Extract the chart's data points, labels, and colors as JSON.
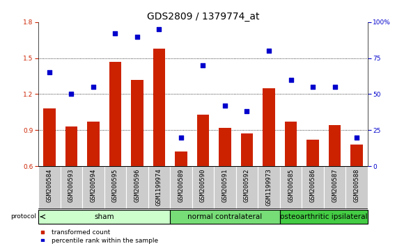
{
  "title": "GDS2809 / 1379774_at",
  "samples": [
    "GSM200584",
    "GSM200593",
    "GSM200594",
    "GSM200595",
    "GSM200596",
    "GSM1199974",
    "GSM200589",
    "GSM200590",
    "GSM200591",
    "GSM200592",
    "GSM1199973",
    "GSM200585",
    "GSM200586",
    "GSM200587",
    "GSM200588"
  ],
  "bar_values": [
    1.08,
    0.93,
    0.97,
    1.47,
    1.32,
    1.58,
    0.72,
    1.03,
    0.92,
    0.87,
    1.25,
    0.97,
    0.82,
    0.94,
    0.78
  ],
  "dot_values": [
    65,
    50,
    55,
    92,
    90,
    95,
    20,
    70,
    42,
    38,
    80,
    60,
    55,
    55,
    20
  ],
  "bar_color": "#cc2200",
  "dot_color": "#0000cc",
  "ylim_left": [
    0.6,
    1.8
  ],
  "ylim_right": [
    0,
    100
  ],
  "yticks_left": [
    0.6,
    0.9,
    1.2,
    1.5,
    1.8
  ],
  "yticks_right": [
    0,
    25,
    50,
    75,
    100
  ],
  "ytick_labels_right": [
    "0",
    "25",
    "50",
    "75",
    "100%"
  ],
  "hgrid_lines": [
    0.9,
    1.2,
    1.5
  ],
  "groups": [
    {
      "label": "sham",
      "start": 0,
      "end": 5,
      "color": "#ccffcc"
    },
    {
      "label": "normal contralateral",
      "start": 6,
      "end": 10,
      "color": "#77dd77"
    },
    {
      "label": "osteoarthritic ipsilateral",
      "start": 11,
      "end": 14,
      "color": "#44cc44"
    }
  ],
  "protocol_label": "protocol",
  "legend_bar_label": "transformed count",
  "legend_dot_label": "percentile rank within the sample",
  "background_color": "#ffffff",
  "xtick_bg_color": "#cccccc",
  "title_fontsize": 10,
  "tick_fontsize": 6.5,
  "group_fontsize": 7.5
}
